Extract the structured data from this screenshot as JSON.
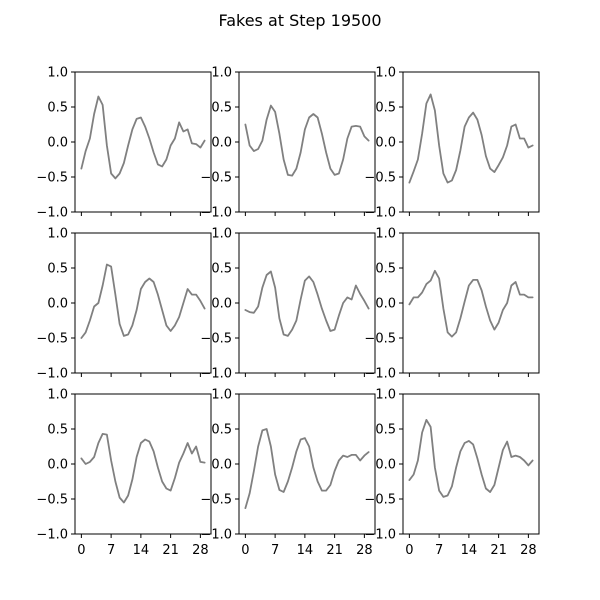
{
  "figure": {
    "title": "Fakes at Step 19500"
  },
  "chart_data": {
    "type": "line",
    "title": "Fakes at Step 19500",
    "xlabel": "",
    "ylabel": "",
    "xlim": [
      -1.5,
      30.5
    ],
    "ylim": [
      -1.0,
      1.0
    ],
    "x_ticks": [
      0,
      7,
      14,
      21,
      28
    ],
    "y_ticks": [
      -1.0,
      -0.5,
      0.0,
      0.5,
      1.0
    ],
    "y_tick_labels": [
      "−1.0",
      "−0.5",
      "0.0",
      "0.5",
      "1.0"
    ],
    "grid": false,
    "line_color": "#808080",
    "x": [
      0,
      1,
      2,
      3,
      4,
      5,
      6,
      7,
      8,
      9,
      10,
      11,
      12,
      13,
      14,
      15,
      16,
      17,
      18,
      19,
      20,
      21,
      22,
      23,
      24,
      25,
      26,
      27,
      28,
      29
    ],
    "panels": [
      {
        "row": 0,
        "col": 0,
        "values": [
          -0.38,
          -0.13,
          0.05,
          0.4,
          0.65,
          0.53,
          -0.05,
          -0.45,
          -0.52,
          -0.45,
          -0.3,
          -0.05,
          0.18,
          0.33,
          0.35,
          0.22,
          0.05,
          -0.15,
          -0.32,
          -0.35,
          -0.25,
          -0.05,
          0.05,
          0.28,
          0.15,
          0.18,
          -0.02,
          -0.03,
          -0.08,
          0.02
        ]
      },
      {
        "row": 0,
        "col": 1,
        "values": [
          0.25,
          -0.05,
          -0.13,
          -0.1,
          0.02,
          0.32,
          0.52,
          0.43,
          0.12,
          -0.25,
          -0.47,
          -0.48,
          -0.38,
          -0.15,
          0.18,
          0.35,
          0.4,
          0.35,
          0.12,
          -0.15,
          -0.38,
          -0.47,
          -0.45,
          -0.25,
          0.05,
          0.22,
          0.23,
          0.22,
          0.08,
          0.02
        ]
      },
      {
        "row": 0,
        "col": 2,
        "values": [
          -0.58,
          -0.42,
          -0.25,
          0.12,
          0.55,
          0.68,
          0.45,
          -0.05,
          -0.45,
          -0.58,
          -0.55,
          -0.4,
          -0.12,
          0.22,
          0.35,
          0.42,
          0.32,
          0.1,
          -0.2,
          -0.38,
          -0.43,
          -0.33,
          -0.22,
          -0.05,
          0.22,
          0.25,
          0.05,
          0.05,
          -0.08,
          -0.05
        ]
      },
      {
        "row": 1,
        "col": 0,
        "values": [
          -0.5,
          -0.42,
          -0.25,
          -0.05,
          0.0,
          0.25,
          0.55,
          0.52,
          0.12,
          -0.3,
          -0.47,
          -0.45,
          -0.32,
          -0.1,
          0.2,
          0.3,
          0.35,
          0.3,
          0.12,
          -0.1,
          -0.32,
          -0.4,
          -0.32,
          -0.2,
          0.0,
          0.2,
          0.12,
          0.12,
          0.03,
          -0.08
        ]
      },
      {
        "row": 1,
        "col": 1,
        "values": [
          -0.1,
          -0.13,
          -0.14,
          -0.05,
          0.22,
          0.4,
          0.45,
          0.22,
          -0.22,
          -0.45,
          -0.47,
          -0.38,
          -0.25,
          0.05,
          0.32,
          0.38,
          0.3,
          0.12,
          -0.08,
          -0.25,
          -0.4,
          -0.38,
          -0.18,
          0.0,
          0.08,
          0.05,
          0.25,
          0.13,
          0.03,
          -0.08
        ]
      },
      {
        "row": 1,
        "col": 2,
        "values": [
          -0.02,
          0.08,
          0.08,
          0.15,
          0.27,
          0.32,
          0.46,
          0.35,
          -0.08,
          -0.42,
          -0.48,
          -0.42,
          -0.22,
          0.02,
          0.25,
          0.33,
          0.33,
          0.18,
          -0.05,
          -0.25,
          -0.38,
          -0.28,
          -0.1,
          0.0,
          0.25,
          0.3,
          0.12,
          0.12,
          0.08,
          0.08
        ]
      },
      {
        "row": 2,
        "col": 0,
        "values": [
          0.08,
          0.0,
          0.03,
          0.1,
          0.3,
          0.43,
          0.42,
          0.05,
          -0.25,
          -0.48,
          -0.55,
          -0.45,
          -0.22,
          0.1,
          0.3,
          0.35,
          0.32,
          0.18,
          -0.05,
          -0.25,
          -0.35,
          -0.38,
          -0.2,
          0.02,
          0.15,
          0.3,
          0.15,
          0.25,
          0.03,
          0.02
        ]
      },
      {
        "row": 2,
        "col": 1,
        "values": [
          -0.63,
          -0.42,
          -0.1,
          0.25,
          0.48,
          0.5,
          0.25,
          -0.15,
          -0.37,
          -0.4,
          -0.25,
          -0.05,
          0.18,
          0.35,
          0.37,
          0.25,
          -0.05,
          -0.25,
          -0.38,
          -0.38,
          -0.3,
          -0.1,
          0.05,
          0.12,
          0.1,
          0.13,
          0.13,
          0.05,
          0.12,
          0.17
        ]
      },
      {
        "row": 2,
        "col": 2,
        "values": [
          -0.23,
          -0.15,
          0.05,
          0.45,
          0.63,
          0.53,
          -0.05,
          -0.38,
          -0.47,
          -0.45,
          -0.32,
          -0.05,
          0.18,
          0.3,
          0.33,
          0.28,
          0.08,
          -0.15,
          -0.35,
          -0.4,
          -0.3,
          -0.05,
          0.2,
          0.32,
          0.1,
          0.12,
          0.1,
          0.05,
          -0.02,
          0.05
        ]
      }
    ]
  }
}
